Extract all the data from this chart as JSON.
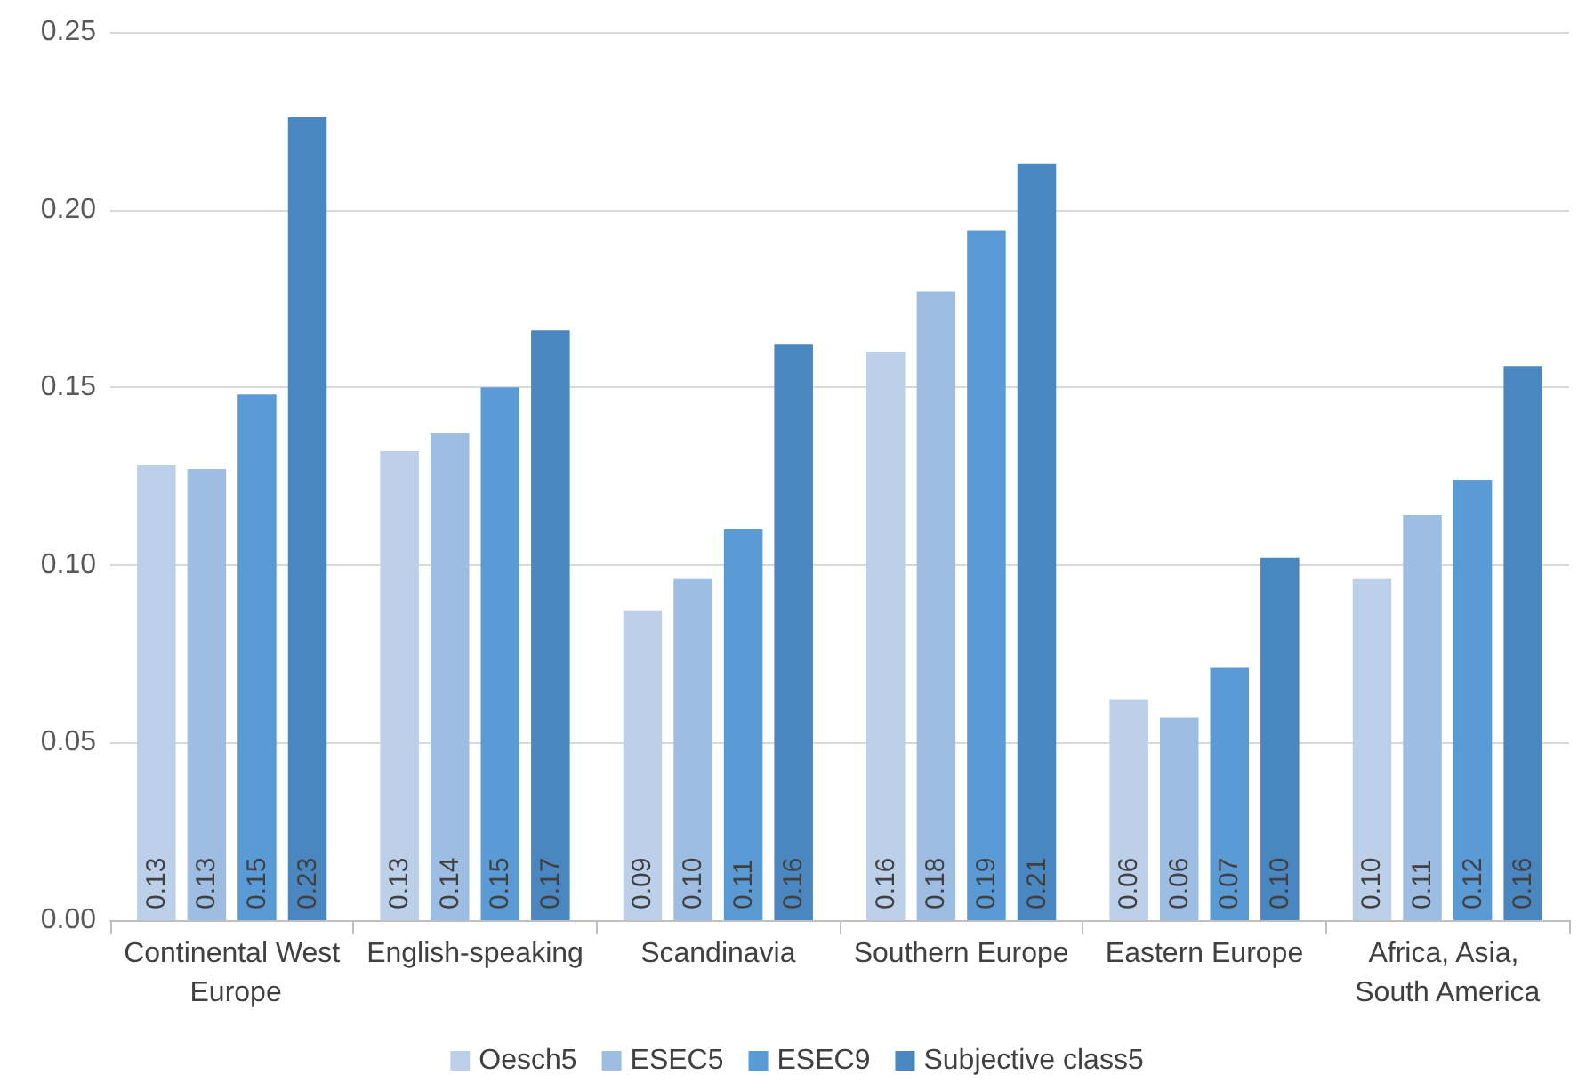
{
  "chart_data": {
    "type": "bar",
    "categories": [
      "Continental West Europe",
      "English-speaking",
      "Scandinavia",
      "Southern Europe",
      "Eastern Europe",
      "Africa, Asia, South America"
    ],
    "series": [
      {
        "name": "Oesch5",
        "color": "#bdd0ea",
        "values": [
          0.128,
          0.132,
          0.087,
          0.16,
          0.062,
          0.096
        ],
        "value_labels": [
          "0.13",
          "0.13",
          "0.09",
          "0.16",
          "0.06",
          "0.10"
        ]
      },
      {
        "name": "ESEC5",
        "color": "#9dbde3",
        "values": [
          0.127,
          0.137,
          0.096,
          0.177,
          0.057,
          0.114
        ],
        "value_labels": [
          "0.13",
          "0.14",
          "0.10",
          "0.18",
          "0.06",
          "0.11"
        ]
      },
      {
        "name": "ESEC9",
        "color": "#5b9bd5",
        "values": [
          0.148,
          0.15,
          0.11,
          0.194,
          0.071,
          0.124
        ],
        "value_labels": [
          "0.15",
          "0.15",
          "0.11",
          "0.19",
          "0.07",
          "0.12"
        ]
      },
      {
        "name": "Subjective class5",
        "color": "#4a86c0",
        "values": [
          0.226,
          0.166,
          0.162,
          0.213,
          0.102,
          0.156
        ],
        "value_labels": [
          "0.23",
          "0.17",
          "0.16",
          "0.21",
          "0.10",
          "0.16"
        ]
      }
    ],
    "ylim": [
      0,
      0.25
    ],
    "yticks": [
      {
        "value": 0,
        "label": "0.00"
      },
      {
        "value": 0.05,
        "label": "0.05"
      },
      {
        "value": 0.1,
        "label": "0.10"
      },
      {
        "value": 0.15,
        "label": "0.15"
      },
      {
        "value": 0.2,
        "label": "0.20"
      },
      {
        "value": 0.25,
        "label": "0.25"
      }
    ],
    "grid": "y",
    "legend": "bottom"
  }
}
